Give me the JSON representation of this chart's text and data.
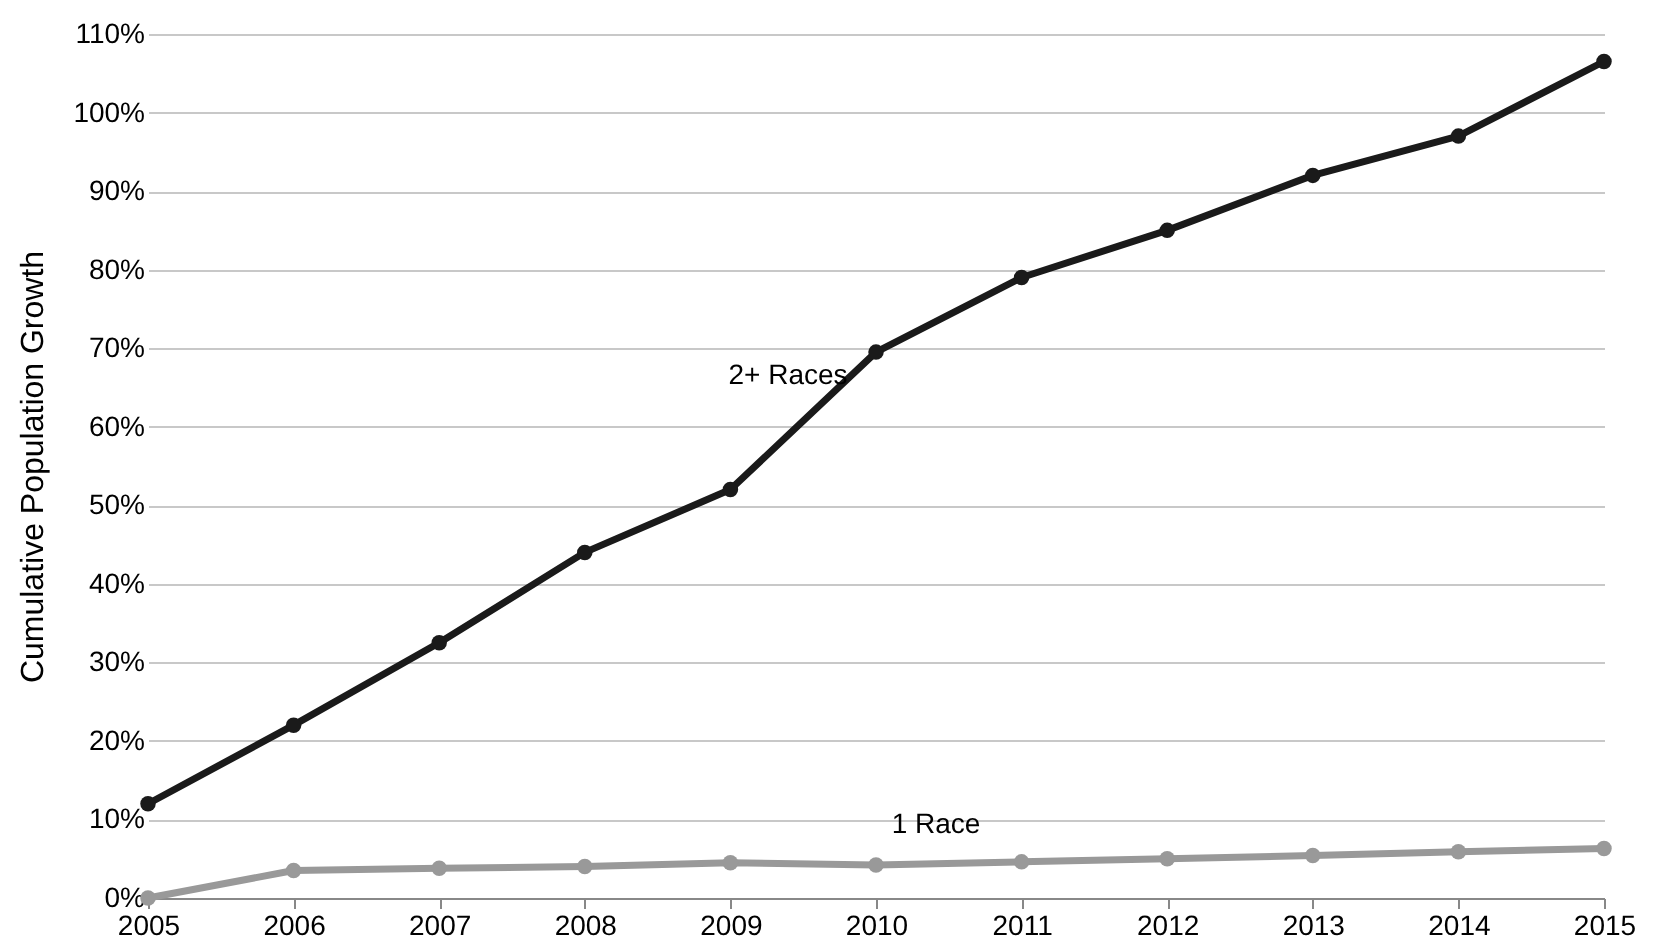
{
  "chart_data": {
    "type": "line",
    "ylabel": "Cumulative Population Growth",
    "x": [
      2005,
      2006,
      2007,
      2008,
      2009,
      2010,
      2011,
      2012,
      2013,
      2014,
      2015
    ],
    "series": [
      {
        "name": "2+ Races",
        "color": "#1a1a1a",
        "values": [
          12,
          22,
          32.5,
          44,
          52,
          69.5,
          79,
          85,
          92,
          97,
          106.5
        ]
      },
      {
        "name": "1 Race",
        "color": "#999999",
        "values": [
          0,
          3.5,
          3.8,
          4,
          4.5,
          4.2,
          4.6,
          5,
          5.4,
          5.9,
          6.3
        ]
      }
    ],
    "xlim": [
      2005,
      2015
    ],
    "xticks": [
      2005,
      2006,
      2007,
      2008,
      2009,
      2010,
      2011,
      2012,
      2013,
      2014,
      2015
    ],
    "ylim": [
      0,
      110
    ],
    "yticks": [
      {
        "value": 0,
        "label": "0%"
      },
      {
        "value": 10,
        "label": "10%"
      },
      {
        "value": 20,
        "label": "20%"
      },
      {
        "value": 30,
        "label": "30%"
      },
      {
        "value": 40,
        "label": "40%"
      },
      {
        "value": 50,
        "label": "50%"
      },
      {
        "value": 60,
        "label": "60%"
      },
      {
        "value": 70,
        "label": "70%"
      },
      {
        "value": 80,
        "label": "80%"
      },
      {
        "value": 90,
        "label": "90%"
      },
      {
        "value": 100,
        "label": "100%"
      },
      {
        "value": 110,
        "label": "110%"
      }
    ],
    "grid": "y",
    "marker": "circle",
    "line_style": "solid"
  }
}
